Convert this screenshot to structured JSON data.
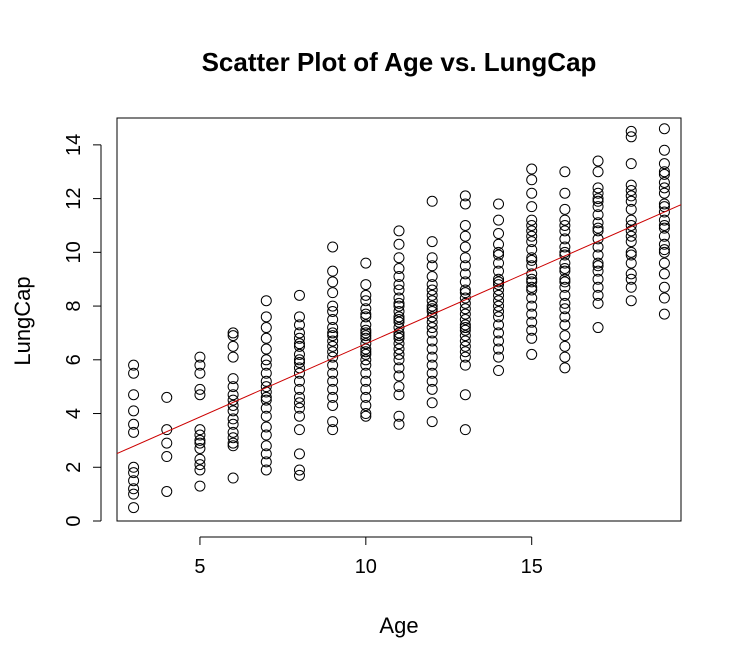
{
  "chart_data": {
    "type": "scatter",
    "title": "Scatter Plot of Age vs. LungCap",
    "xlabel": "Age",
    "ylabel": "LungCap",
    "xlim": [
      2.5,
      19.5
    ],
    "ylim": [
      0,
      15
    ],
    "xticks": [
      5,
      10,
      15
    ],
    "yticks": [
      0,
      2,
      4,
      6,
      8,
      10,
      12,
      14
    ],
    "grid": false,
    "fit_line": {
      "intercept": 1.147,
      "slope": 0.545,
      "color": "#cc0000"
    },
    "point_color": "#000000",
    "series": [
      {
        "x": [
          3,
          3,
          3,
          3,
          3,
          3,
          3,
          3,
          3,
          3,
          3,
          3,
          4,
          4,
          4,
          4,
          4,
          5,
          5,
          5,
          5,
          5,
          5,
          5,
          5,
          5,
          5,
          5,
          5,
          5,
          5,
          6,
          6,
          6,
          6,
          6,
          6,
          6,
          6,
          6,
          6,
          6,
          6,
          6,
          6,
          6,
          6,
          6,
          7,
          7,
          7,
          7,
          7,
          7,
          7,
          7,
          7,
          7,
          7,
          7,
          7,
          7,
          7,
          7,
          7,
          7,
          7,
          7,
          7,
          8,
          8,
          8,
          8,
          8,
          8,
          8,
          8,
          8,
          8,
          8,
          8,
          8,
          8,
          8,
          8,
          8,
          8,
          8,
          8,
          8,
          8,
          9,
          9,
          9,
          9,
          9,
          9,
          9,
          9,
          9,
          9,
          9,
          9,
          9,
          9,
          9,
          9,
          9,
          9,
          9,
          9,
          9,
          9,
          10,
          10,
          10,
          10,
          10,
          10,
          10,
          10,
          10,
          10,
          10,
          10,
          10,
          10,
          10,
          10,
          10,
          10,
          10,
          10,
          10,
          10,
          10,
          10,
          10,
          11,
          11,
          11,
          11,
          11,
          11,
          11,
          11,
          11,
          11,
          11,
          11,
          11,
          11,
          11,
          11,
          11,
          11,
          11,
          11,
          11,
          11,
          11,
          11,
          11,
          11,
          11,
          11,
          12,
          12,
          12,
          12,
          12,
          12,
          12,
          12,
          12,
          12,
          12,
          12,
          12,
          12,
          12,
          12,
          12,
          12,
          12,
          12,
          12,
          12,
          12,
          12,
          12,
          13,
          13,
          13,
          13,
          13,
          13,
          13,
          13,
          13,
          13,
          13,
          13,
          13,
          13,
          13,
          13,
          13,
          13,
          13,
          13,
          13,
          13,
          13,
          13,
          13,
          13,
          13,
          14,
          14,
          14,
          14,
          14,
          14,
          14,
          14,
          14,
          14,
          14,
          14,
          14,
          14,
          14,
          14,
          14,
          14,
          14,
          14,
          14,
          14,
          14,
          15,
          15,
          15,
          15,
          15,
          15,
          15,
          15,
          15,
          15,
          15,
          15,
          15,
          15,
          15,
          15,
          15,
          15,
          15,
          15,
          15,
          15,
          15,
          15,
          15,
          16,
          16,
          16,
          16,
          16,
          16,
          16,
          16,
          16,
          16,
          16,
          16,
          16,
          16,
          16,
          16,
          16,
          16,
          16,
          16,
          16,
          16,
          16,
          16,
          16,
          17,
          17,
          17,
          17,
          17,
          17,
          17,
          17,
          17,
          17,
          17,
          17,
          17,
          17,
          17,
          17,
          17,
          17,
          17,
          17,
          17,
          17,
          18,
          18,
          18,
          18,
          18,
          18,
          18,
          18,
          18,
          18,
          18,
          18,
          18,
          18,
          18,
          18,
          18,
          18,
          18,
          18,
          19,
          19,
          19,
          19,
          19,
          19,
          19,
          19,
          19,
          19,
          19,
          19,
          19,
          19,
          19,
          19,
          19,
          19,
          19,
          19,
          19,
          19,
          19
        ],
        "y": [
          5.8,
          5.5,
          4.7,
          4.1,
          3.6,
          3.3,
          2.0,
          1.5,
          1.2,
          1.0,
          0.5,
          1.8,
          4.6,
          3.4,
          2.9,
          2.4,
          1.1,
          6.1,
          5.8,
          5.5,
          4.9,
          4.7,
          3.4,
          3.0,
          2.9,
          2.7,
          2.3,
          2.1,
          1.9,
          1.3,
          3.2,
          7.0,
          6.9,
          6.5,
          6.1,
          5.3,
          5.0,
          4.7,
          4.3,
          4.1,
          3.8,
          3.6,
          3.3,
          3.1,
          2.9,
          2.8,
          1.6,
          4.5,
          8.2,
          7.6,
          7.2,
          6.8,
          6.4,
          6.0,
          5.8,
          5.5,
          5.2,
          5.0,
          4.8,
          4.5,
          4.2,
          3.9,
          3.5,
          3.2,
          2.8,
          2.5,
          2.2,
          1.9,
          4.6,
          8.4,
          7.6,
          7.3,
          7.0,
          6.8,
          6.5,
          6.2,
          6.0,
          5.7,
          5.5,
          5.2,
          4.9,
          4.6,
          4.4,
          4.2,
          3.9,
          3.4,
          2.5,
          1.9,
          1.7,
          5.9,
          6.6,
          10.2,
          9.3,
          8.9,
          8.5,
          8.0,
          7.8,
          7.5,
          7.2,
          7.0,
          6.7,
          6.5,
          6.3,
          6.1,
          5.8,
          5.5,
          5.2,
          4.9,
          4.6,
          4.3,
          3.7,
          3.4,
          6.9,
          9.6,
          8.8,
          8.4,
          8.2,
          7.9,
          7.6,
          7.3,
          7.0,
          6.8,
          6.6,
          6.4,
          6.2,
          6.0,
          5.8,
          5.5,
          5.2,
          4.9,
          4.6,
          4.3,
          4.0,
          3.9,
          7.1,
          6.9,
          7.7,
          6.3,
          10.8,
          10.3,
          9.8,
          9.4,
          9.1,
          8.8,
          8.6,
          8.3,
          8.0,
          7.8,
          7.6,
          7.4,
          7.2,
          7.0,
          6.8,
          6.6,
          6.4,
          6.2,
          6.0,
          5.7,
          5.4,
          5.0,
          4.7,
          3.9,
          3.6,
          7.5,
          8.1,
          6.9,
          11.9,
          10.4,
          9.8,
          9.5,
          9.1,
          8.8,
          8.6,
          8.4,
          8.2,
          8.0,
          7.8,
          7.6,
          7.4,
          7.2,
          7.0,
          6.7,
          6.4,
          6.1,
          5.8,
          5.5,
          5.2,
          4.9,
          4.4,
          3.7,
          7.9,
          12.1,
          11.8,
          11.0,
          10.6,
          10.2,
          9.8,
          9.5,
          9.2,
          8.9,
          8.6,
          8.3,
          8.1,
          7.9,
          7.7,
          7.5,
          7.3,
          7.1,
          6.9,
          6.7,
          6.5,
          6.3,
          6.1,
          5.8,
          4.7,
          3.4,
          8.5,
          7.2,
          11.8,
          11.2,
          10.7,
          10.3,
          10.0,
          9.6,
          9.3,
          9.0,
          8.8,
          8.6,
          8.4,
          8.2,
          8.0,
          7.8,
          7.6,
          7.3,
          7.0,
          6.7,
          6.4,
          6.1,
          5.6,
          9.9,
          8.9,
          13.1,
          12.7,
          12.2,
          11.7,
          11.2,
          10.8,
          10.4,
          10.1,
          9.8,
          9.5,
          9.2,
          8.9,
          8.6,
          8.3,
          8.0,
          7.7,
          7.4,
          7.1,
          6.8,
          6.2,
          9.0,
          10.6,
          8.7,
          9.7,
          11.0,
          13.0,
          12.2,
          11.6,
          11.2,
          10.8,
          10.5,
          10.2,
          9.9,
          9.6,
          9.3,
          9.0,
          8.7,
          8.4,
          8.1,
          7.9,
          7.6,
          7.3,
          6.9,
          6.5,
          6.1,
          5.7,
          10.0,
          9.4,
          11.0,
          8.9,
          13.4,
          13.0,
          12.4,
          12.0,
          11.7,
          11.4,
          11.1,
          10.8,
          10.5,
          10.2,
          9.9,
          9.6,
          9.3,
          9.0,
          8.7,
          8.4,
          8.1,
          7.2,
          11.9,
          10.9,
          12.2,
          9.5,
          14.5,
          14.3,
          13.3,
          12.5,
          12.1,
          11.6,
          11.2,
          10.8,
          10.4,
          10.0,
          9.6,
          9.2,
          8.7,
          8.2,
          11.9,
          10.6,
          12.3,
          9.9,
          9.0,
          11.0,
          14.6,
          13.8,
          13.3,
          13.0,
          12.6,
          12.2,
          11.8,
          11.5,
          11.2,
          10.9,
          10.6,
          10.3,
          10.0,
          9.6,
          9.2,
          8.7,
          8.3,
          7.7,
          11.7,
          12.9,
          11.0,
          10.1,
          12.4
        ]
      }
    ]
  }
}
